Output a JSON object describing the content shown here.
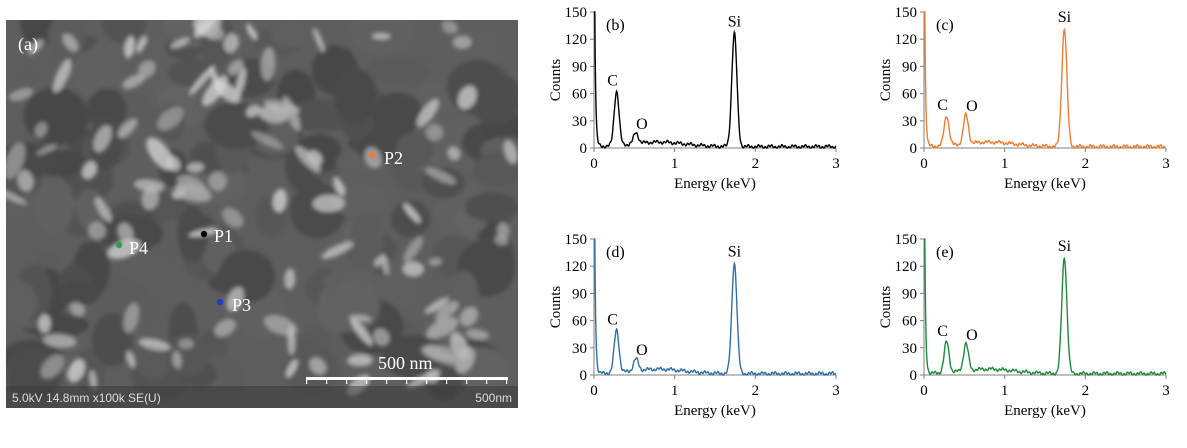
{
  "sem": {
    "label": "(a)",
    "scale_bar_label": "500 nm",
    "footer_left": "5.0kV 14.8mm x100k SE(U)",
    "footer_right": "500nm",
    "points": [
      {
        "name": "P1",
        "color": "#000000"
      },
      {
        "name": "P2",
        "color": "#ed7d31"
      },
      {
        "name": "P3",
        "color": "#1f3fbf"
      },
      {
        "name": "P4",
        "color": "#2ca24c"
      }
    ]
  },
  "chart_data": [
    {
      "type": "line",
      "panel_label": "(b)",
      "color": "#000000",
      "xlabel": "Energy (keV)",
      "ylabel": "Counts",
      "xlim": [
        0,
        3
      ],
      "ylim": [
        0,
        150
      ],
      "xticks": [
        0,
        1,
        2,
        3
      ],
      "yticks": [
        0,
        30,
        60,
        90,
        120,
        150
      ],
      "peaks": [
        {
          "label": "C",
          "energy": 0.28,
          "counts": 60
        },
        {
          "label": "O",
          "energy": 0.52,
          "counts": 12
        },
        {
          "label": "Si",
          "energy": 1.74,
          "counts": 125
        }
      ]
    },
    {
      "type": "line",
      "panel_label": "(c)",
      "color": "#ed7d31",
      "xlabel": "Energy (keV)",
      "ylabel": "Counts",
      "xlim": [
        0,
        3
      ],
      "ylim": [
        0,
        150
      ],
      "xticks": [
        0,
        1,
        2,
        3
      ],
      "yticks": [
        0,
        30,
        60,
        90,
        120,
        150
      ],
      "peaks": [
        {
          "label": "C",
          "energy": 0.28,
          "counts": 33
        },
        {
          "label": "O",
          "energy": 0.52,
          "counts": 32
        },
        {
          "label": "Si",
          "energy": 1.74,
          "counts": 130
        }
      ]
    },
    {
      "type": "line",
      "panel_label": "(d)",
      "color": "#2e6fa8",
      "xlabel": "Energy (keV)",
      "ylabel": "Counts",
      "xlim": [
        0,
        3
      ],
      "ylim": [
        0,
        150
      ],
      "xticks": [
        0,
        1,
        2,
        3
      ],
      "yticks": [
        0,
        30,
        60,
        90,
        120,
        150
      ],
      "peaks": [
        {
          "label": "C",
          "energy": 0.28,
          "counts": 47
        },
        {
          "label": "O",
          "energy": 0.52,
          "counts": 13
        },
        {
          "label": "Si",
          "energy": 1.74,
          "counts": 122
        }
      ]
    },
    {
      "type": "line",
      "panel_label": "(e)",
      "color": "#1e8a3c",
      "xlabel": "Energy (keV)",
      "ylabel": "Counts",
      "xlim": [
        0,
        3
      ],
      "ylim": [
        0,
        150
      ],
      "xticks": [
        0,
        1,
        2,
        3
      ],
      "yticks": [
        0,
        30,
        60,
        90,
        120,
        150
      ],
      "peaks": [
        {
          "label": "C",
          "energy": 0.28,
          "counts": 34
        },
        {
          "label": "O",
          "energy": 0.52,
          "counts": 30
        },
        {
          "label": "Si",
          "energy": 1.74,
          "counts": 128
        }
      ]
    }
  ]
}
